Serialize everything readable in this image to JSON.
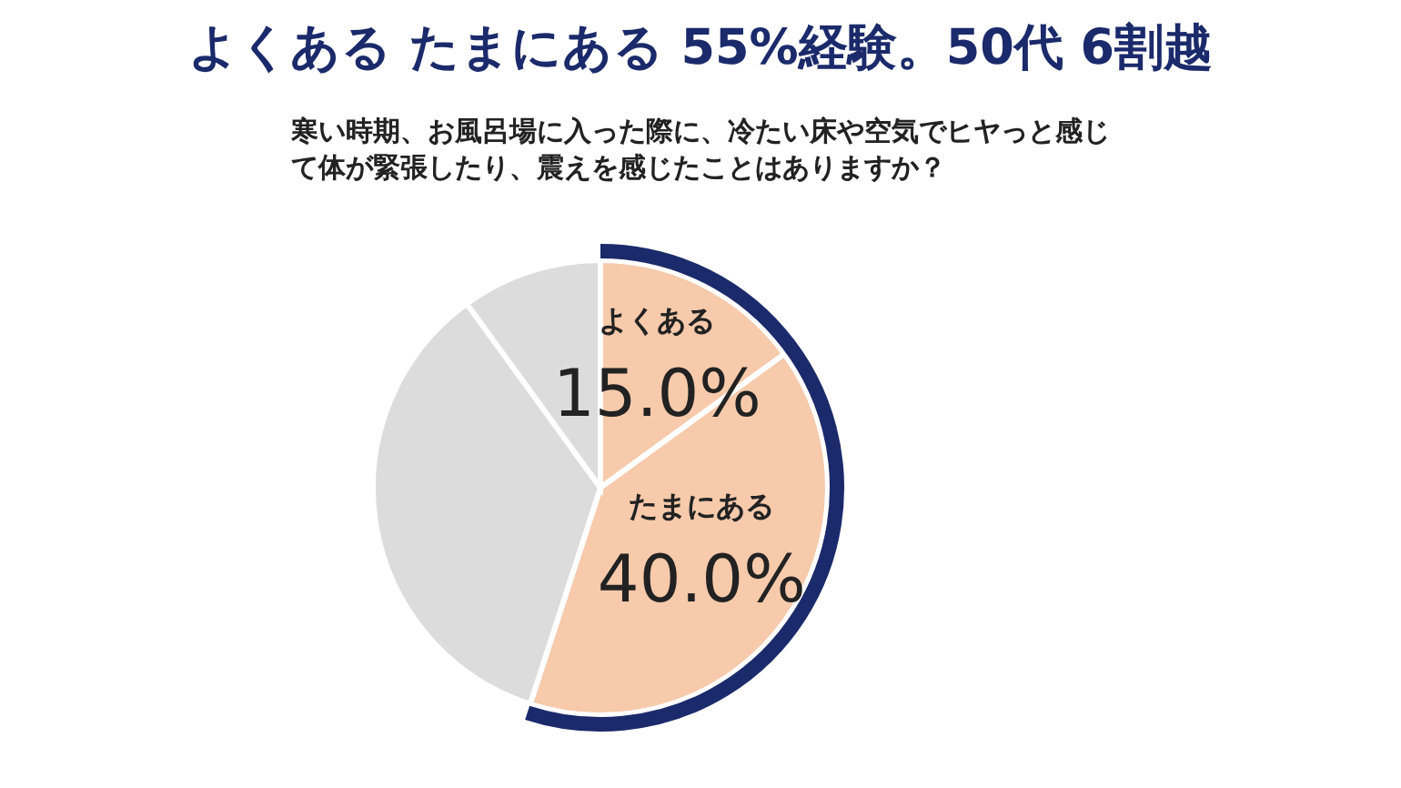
{
  "chart_data": {
    "type": "pie",
    "title": "よくある たまにある 55%経験。50代 6割越",
    "subtitle": "寒い時期、お風呂場に入った際に、冷たい床や空気でヒヤっと感じて体が緊張したり、震えを感じたことはありますか？",
    "categories": [
      "よくある",
      "たまにある",
      null,
      null
    ],
    "values": [
      15.0,
      40.0,
      35,
      10
    ],
    "colors": [
      "#f6caab",
      "#f6caab",
      "#dcdcdc",
      "#dcdcdc"
    ],
    "value_labels": [
      "15.0%",
      "40.0%",
      null,
      null
    ]
  }
}
